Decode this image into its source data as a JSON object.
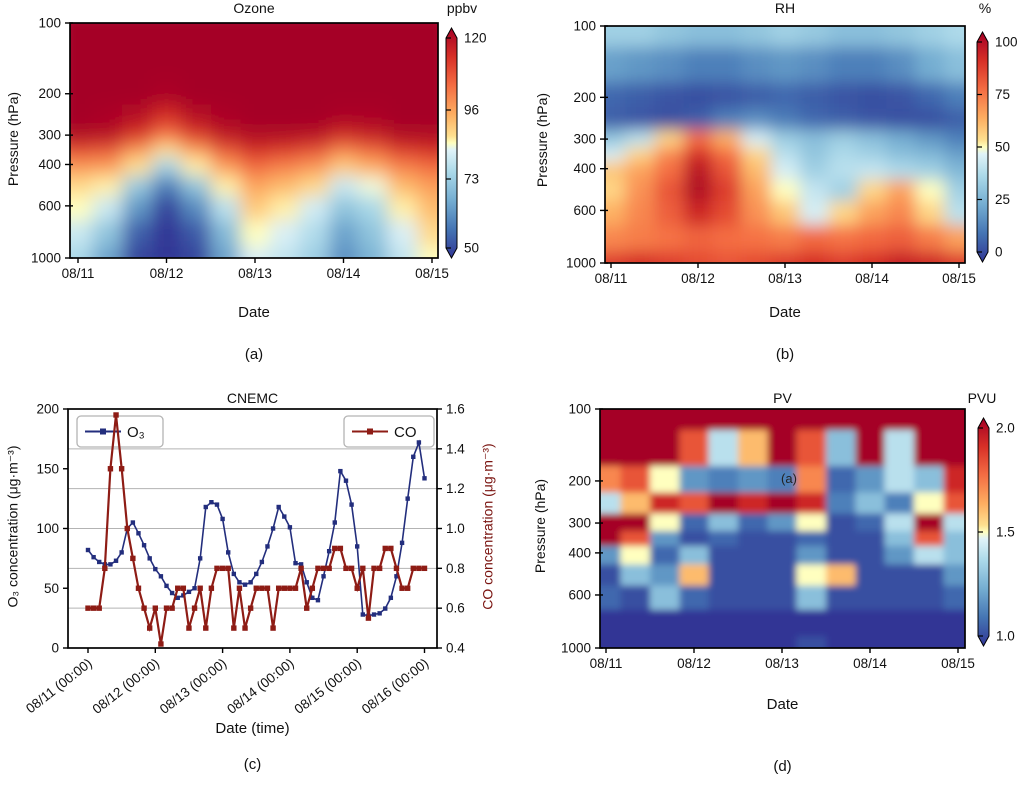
{
  "figure": {
    "background": "#ffffff",
    "colormap_stops": [
      [
        0,
        "#313695"
      ],
      [
        0.125,
        "#4575b4"
      ],
      [
        0.25,
        "#74add1"
      ],
      [
        0.375,
        "#abd9e9"
      ],
      [
        0.47,
        "#e0f3f8"
      ],
      [
        0.5,
        "#ffffbf"
      ],
      [
        0.53,
        "#fee090"
      ],
      [
        0.625,
        "#fdae61"
      ],
      [
        0.75,
        "#f46d43"
      ],
      [
        0.875,
        "#d73027"
      ],
      [
        1,
        "#a50026"
      ]
    ],
    "frame_color": "#000000",
    "grid_color": "#b3b3b3"
  },
  "chart_data": [
    {
      "id": "a",
      "type": "heatmap",
      "title": "Ozone",
      "caption": "(a)",
      "xlabel": "Date",
      "ylabel": "Pressure (hPa)",
      "xticks": [
        "08/11",
        "08/12",
        "08/13",
        "08/14",
        "08/15"
      ],
      "yticks": [
        100,
        200,
        300,
        400,
        600,
        1000
      ],
      "y_scale": "log",
      "colorbar": {
        "label": "ppbv",
        "vmin": 50,
        "vmax": 120,
        "ticks": [
          120,
          96,
          73,
          50
        ],
        "tick_labels": [
          "120",
          "96",
          "73",
          "50"
        ]
      },
      "grid": {
        "x_days": [
          0,
          0.33,
          0.67,
          1,
          1.33,
          1.67,
          2,
          2.33,
          2.67,
          3,
          3.33,
          3.67,
          4
        ],
        "pressure_hpa": [
          100,
          150,
          200,
          250,
          300,
          350,
          400,
          500,
          600,
          800,
          1000
        ],
        "values": [
          [
            120,
            120,
            120,
            120,
            120,
            120,
            120,
            120,
            120,
            120,
            120,
            120,
            120
          ],
          [
            120,
            120,
            120,
            120,
            120,
            120,
            120,
            120,
            120,
            120,
            120,
            120,
            120
          ],
          [
            120,
            120,
            120,
            119,
            120,
            120,
            120,
            120,
            120,
            120,
            120,
            120,
            120
          ],
          [
            120,
            119,
            117,
            112,
            117,
            119,
            120,
            120,
            120,
            119,
            119,
            120,
            120
          ],
          [
            118,
            117,
            111,
            102,
            110,
            116,
            118,
            118,
            117,
            113,
            115,
            118,
            118
          ],
          [
            108,
            106,
            97,
            87,
            96,
            106,
            112,
            110,
            107,
            100,
            104,
            110,
            112
          ],
          [
            97,
            96,
            87,
            75,
            86,
            96,
            103,
            100,
            97,
            90,
            94,
            100,
            103
          ],
          [
            88,
            86,
            73,
            60,
            72,
            86,
            95,
            92,
            88,
            80,
            84,
            92,
            96
          ],
          [
            85,
            80,
            64,
            52,
            62,
            78,
            90,
            86,
            81,
            72,
            76,
            86,
            92
          ],
          [
            80,
            72,
            56,
            48,
            55,
            70,
            85,
            82,
            77,
            66,
            72,
            82,
            88
          ],
          [
            76,
            66,
            52,
            46,
            52,
            66,
            82,
            79,
            74,
            63,
            69,
            79,
            85
          ]
        ]
      }
    },
    {
      "id": "b",
      "type": "heatmap",
      "title": "RH",
      "caption": "(b)",
      "xlabel": "Date",
      "ylabel": "Pressure (hPa)",
      "xticks": [
        "08/11",
        "08/12",
        "08/13",
        "08/14",
        "08/15"
      ],
      "yticks": [
        100,
        200,
        300,
        400,
        600,
        1000
      ],
      "y_scale": "log",
      "colorbar": {
        "label": "%",
        "vmin": 0,
        "vmax": 100,
        "ticks": [
          100,
          75,
          50,
          25,
          0
        ],
        "tick_labels": [
          "100",
          "75",
          "50",
          "25",
          "0"
        ]
      },
      "grid": {
        "x_days": [
          0,
          0.33,
          0.67,
          1,
          1.33,
          1.67,
          2,
          2.33,
          2.67,
          3,
          3.33,
          3.67,
          4
        ],
        "pressure_hpa": [
          100,
          150,
          200,
          250,
          300,
          350,
          400,
          500,
          600,
          800,
          1000
        ],
        "values": [
          [
            35,
            35,
            32,
            30,
            30,
            32,
            35,
            33,
            30,
            30,
            32,
            35,
            38
          ],
          [
            22,
            20,
            18,
            15,
            15,
            18,
            20,
            18,
            15,
            15,
            18,
            25,
            30
          ],
          [
            10,
            8,
            6,
            5,
            6,
            8,
            10,
            8,
            6,
            5,
            6,
            10,
            15
          ],
          [
            8,
            6,
            5,
            8,
            15,
            18,
            14,
            10,
            8,
            6,
            5,
            5,
            8
          ],
          [
            32,
            40,
            55,
            75,
            62,
            45,
            34,
            30,
            34,
            30,
            25,
            20,
            15
          ],
          [
            45,
            55,
            70,
            88,
            75,
            55,
            40,
            32,
            38,
            35,
            30,
            28,
            22
          ],
          [
            58,
            65,
            75,
            95,
            80,
            60,
            45,
            35,
            40,
            42,
            38,
            35,
            28
          ],
          [
            55,
            68,
            80,
            97,
            85,
            65,
            50,
            42,
            35,
            55,
            65,
            50,
            35
          ],
          [
            62,
            70,
            78,
            90,
            82,
            68,
            58,
            45,
            55,
            65,
            70,
            55,
            40
          ],
          [
            70,
            72,
            74,
            77,
            75,
            74,
            72,
            76,
            74,
            76,
            78,
            72,
            65
          ],
          [
            85,
            88,
            85,
            82,
            80,
            82,
            85,
            88,
            85,
            88,
            92,
            90,
            85
          ]
        ]
      }
    },
    {
      "id": "c",
      "type": "line",
      "title": "CNEMC",
      "caption": "(c)",
      "xlabel": "Date (time)",
      "ylabel_left": "O₃ concentration (μg·m⁻³)",
      "ylabel_right": "CO concentration (μg·m⁻³)",
      "x_tick_labels": [
        "08/11 (00:00)",
        "08/12 (00:00)",
        "08/13 (00:00)",
        "08/14 (00:00)",
        "08/15 (00:00)",
        "08/16 (00:00)"
      ],
      "x_hours_step": 2,
      "ylim_left": [
        0,
        200
      ],
      "yticks_left": [
        0,
        50,
        100,
        150,
        200
      ],
      "ylim_right": [
        0.4,
        1.6
      ],
      "yticks_right": [
        0.4,
        0.6,
        0.8,
        1.0,
        1.2,
        1.4,
        1.6
      ],
      "gridlines_right": [
        0.6,
        0.8,
        1.0,
        1.2,
        1.4
      ],
      "series": [
        {
          "name": "O₃",
          "color": "#232e7d",
          "axis": "left",
          "values": [
            82,
            76,
            72,
            70,
            70,
            73,
            80,
            100,
            105,
            96,
            86,
            75,
            66,
            60,
            52,
            46,
            42,
            44,
            47,
            50,
            75,
            118,
            122,
            120,
            108,
            80,
            62,
            55,
            53,
            55,
            62,
            72,
            85,
            100,
            118,
            110,
            101,
            71,
            70,
            55,
            42,
            40,
            60,
            81,
            105,
            148,
            140,
            120,
            85,
            28,
            27,
            28,
            29,
            33,
            42,
            60,
            88,
            125,
            160,
            172,
            142
          ]
        },
        {
          "name": "CO",
          "color": "#8e1c15",
          "axis": "right",
          "values": [
            0.6,
            0.6,
            0.6,
            0.8,
            1.3,
            1.57,
            1.3,
            1.0,
            0.85,
            0.7,
            0.6,
            0.5,
            0.6,
            0.42,
            0.6,
            0.6,
            0.7,
            0.7,
            0.5,
            0.6,
            0.7,
            0.5,
            0.7,
            0.8,
            0.8,
            0.8,
            0.5,
            0.7,
            0.5,
            0.6,
            0.7,
            0.7,
            0.7,
            0.5,
            0.7,
            0.7,
            0.7,
            0.7,
            0.8,
            0.6,
            0.7,
            0.8,
            0.8,
            0.8,
            0.9,
            0.9,
            0.8,
            0.8,
            0.7,
            0.8,
            0.55,
            0.8,
            0.8,
            0.9,
            0.9,
            0.8,
            0.7,
            0.7,
            0.8,
            0.8,
            0.8
          ]
        }
      ]
    },
    {
      "id": "d",
      "type": "heatmap",
      "title": "PV",
      "caption": "(d)",
      "xlabel": "Date",
      "ylabel": "Pressure (hPa)",
      "annotation": "(a)",
      "xticks": [
        "08/11",
        "08/12",
        "08/13",
        "08/14",
        "08/15"
      ],
      "yticks": [
        100,
        200,
        300,
        400,
        600,
        1000
      ],
      "y_scale": "log",
      "colorbar": {
        "label": "PVU",
        "vmin": 1.0,
        "vmax": 2.0,
        "ticks": [
          2.0,
          1.5,
          1.0
        ],
        "tick_labels": [
          "2.0",
          "1.5",
          "1.0"
        ]
      },
      "grid": {
        "x_days": [
          0,
          0.33,
          0.67,
          1,
          1.33,
          1.67,
          2,
          2.33,
          2.67,
          3,
          3.33,
          3.67,
          4
        ],
        "pressure_hpa": [
          100,
          150,
          200,
          250,
          300,
          350,
          400,
          500,
          600,
          800,
          1000
        ],
        "values": [
          [
            2.0,
            2.0,
            2.0,
            2.0,
            2.0,
            2.0,
            2.0,
            2.0,
            2.0,
            2.0,
            2.0,
            2.0,
            2.0
          ],
          [
            2.0,
            2.0,
            2.0,
            1.8,
            1.4,
            1.6,
            2.0,
            1.8,
            1.3,
            2.0,
            1.4,
            2.0,
            2.0
          ],
          [
            1.7,
            1.8,
            1.5,
            1.2,
            1.15,
            1.2,
            1.15,
            1.7,
            1.1,
            1.2,
            1.4,
            1.3,
            1.9
          ],
          [
            1.4,
            1.6,
            1.9,
            1.8,
            2.0,
            1.9,
            2.0,
            1.9,
            1.15,
            1.3,
            1.15,
            1.5,
            1.8
          ],
          [
            2.0,
            2.0,
            1.5,
            1.1,
            1.3,
            1.1,
            1.2,
            1.5,
            1.05,
            1.1,
            1.4,
            2.0,
            1.4
          ],
          [
            2.0,
            1.8,
            1.2,
            1.05,
            1.1,
            1.05,
            1.05,
            1.1,
            1.05,
            1.05,
            1.3,
            1.8,
            1.3
          ],
          [
            1.2,
            1.5,
            1.1,
            1.3,
            1.05,
            1.05,
            1.05,
            1.2,
            1.05,
            1.05,
            1.2,
            1.4,
            1.3
          ],
          [
            1.05,
            1.3,
            1.2,
            1.6,
            1.05,
            1.05,
            1.05,
            1.5,
            1.6,
            1.05,
            1.05,
            1.05,
            1.2
          ],
          [
            1.1,
            1.05,
            1.3,
            1.1,
            1.05,
            1.05,
            1.05,
            1.3,
            1.05,
            1.05,
            1.05,
            1.05,
            1.1
          ],
          [
            1.0,
            1.0,
            1.0,
            1.0,
            1.0,
            1.0,
            1.0,
            1.0,
            1.0,
            1.0,
            1.0,
            1.0,
            1.0
          ],
          [
            1.0,
            1.0,
            1.0,
            1.0,
            1.0,
            1.0,
            1.0,
            1.05,
            1.0,
            1.0,
            1.0,
            1.0,
            1.0
          ]
        ]
      }
    }
  ]
}
